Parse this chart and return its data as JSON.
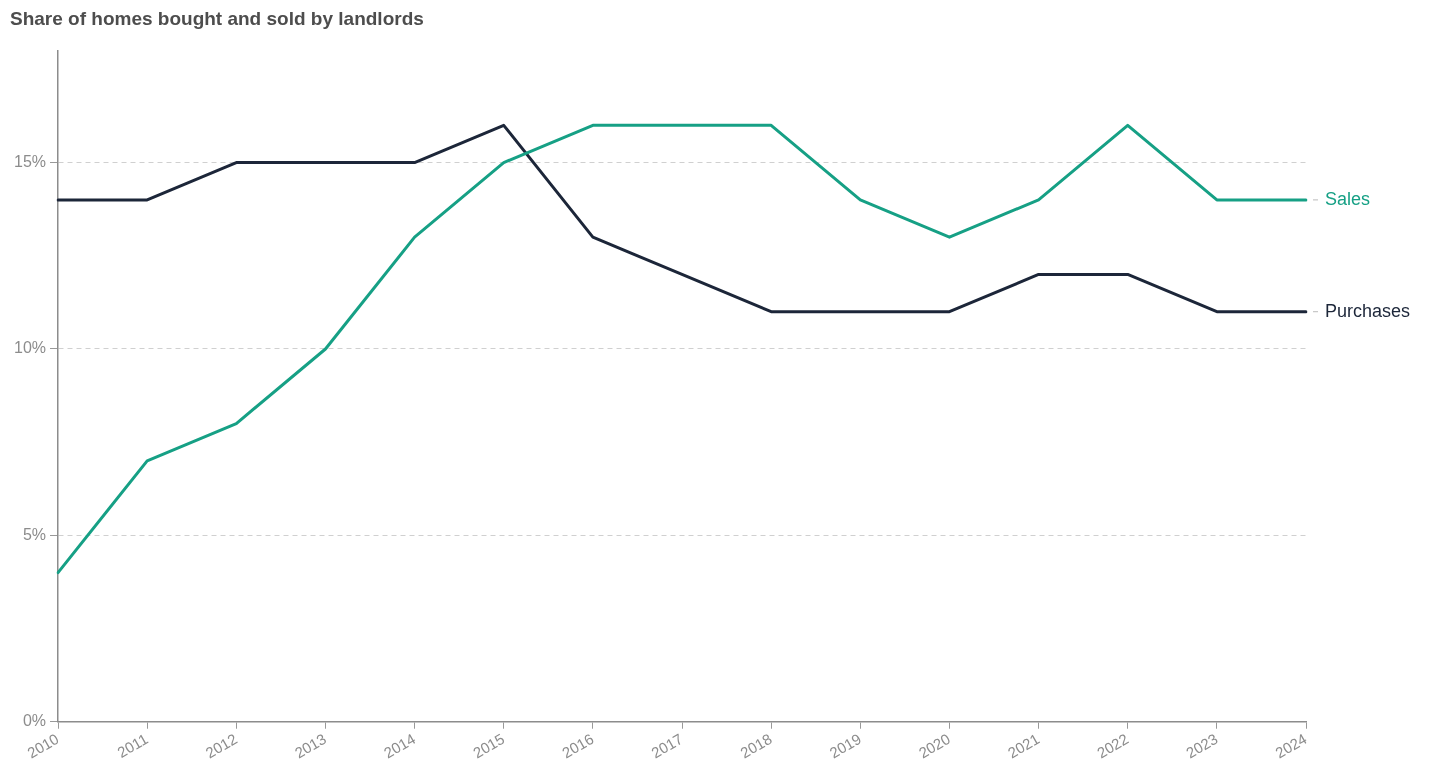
{
  "chart_data": {
    "type": "line",
    "title": "Share of homes bought and sold by landlords",
    "categories": [
      "2010",
      "2011",
      "2012",
      "2013",
      "2014",
      "2015",
      "2016",
      "2017",
      "2018",
      "2019",
      "2020",
      "2021",
      "2022",
      "2023",
      "2024"
    ],
    "series": [
      {
        "name": "Sales",
        "color": "#16a085",
        "values": [
          4,
          7,
          8,
          10,
          13,
          15,
          16,
          16,
          16,
          14,
          13,
          14,
          16,
          14,
          14
        ]
      },
      {
        "name": "Purchases",
        "color": "#1c2639",
        "values": [
          14,
          14,
          15,
          15,
          15,
          16,
          13,
          12,
          11,
          11,
          11,
          12,
          12,
          11,
          11
        ]
      }
    ],
    "ylim": [
      0,
      18
    ],
    "yticks": [
      {
        "value": 0,
        "label": "0%"
      },
      {
        "value": 5,
        "label": "5%"
      },
      {
        "value": 10,
        "label": "10%"
      },
      {
        "value": 15,
        "label": "15%"
      }
    ],
    "grid": "y",
    "marker": "none",
    "line_style": "solid"
  }
}
